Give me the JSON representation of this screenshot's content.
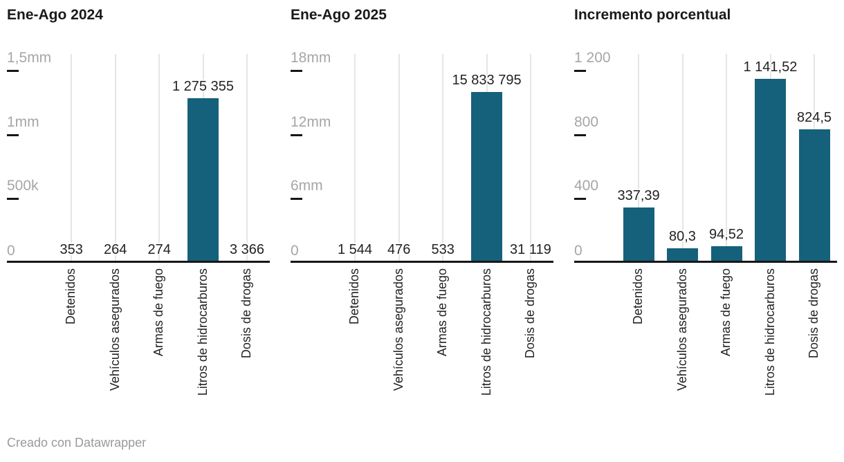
{
  "page": {
    "footer": "Creado con Datawrapper",
    "background": "#ffffff"
  },
  "colors": {
    "bar": "#15617b",
    "grid": "#e5e5e5",
    "axis": "#161616",
    "tick_label": "#a6a6a6",
    "tick_dash": "#161616",
    "title": "#1a1a1a",
    "value_label": "#222222",
    "category_label": "#222222",
    "footer": "#9a9a9a"
  },
  "chart_data": [
    {
      "type": "bar",
      "title": "Ene-Ago 2024",
      "categories": [
        "Detenidos",
        "Vehículos asegurados",
        "Armas de fuego",
        "Litros de hidrocarburos",
        "Dosis de drogas"
      ],
      "values": [
        353,
        264,
        274,
        1275355,
        3366
      ],
      "value_labels": [
        "353",
        "264",
        "274",
        "1 275 355",
        "3 366"
      ],
      "ylim": [
        0,
        1500000
      ],
      "yticks": [
        {
          "value": 1500000,
          "label": "1,5mm"
        },
        {
          "value": 1000000,
          "label": "1mm"
        },
        {
          "value": 500000,
          "label": "500k"
        },
        {
          "value": 0,
          "label": "0"
        }
      ],
      "grid": "vertical",
      "legend": "none"
    },
    {
      "type": "bar",
      "title": "Ene-Ago 2025",
      "categories": [
        "Detenidos",
        "Vehículos asegurados",
        "Armas de fuego",
        "Litros de hidrocarburos",
        "Dosis de drogas"
      ],
      "values": [
        1544,
        476,
        533,
        15833795,
        31119
      ],
      "value_labels": [
        "1 544",
        "476",
        "533",
        "15 833 795",
        "31 119"
      ],
      "ylim": [
        0,
        18000000
      ],
      "yticks": [
        {
          "value": 18000000,
          "label": "18mm"
        },
        {
          "value": 12000000,
          "label": "12mm"
        },
        {
          "value": 6000000,
          "label": "6mm"
        },
        {
          "value": 0,
          "label": "0"
        }
      ],
      "grid": "vertical",
      "legend": "none"
    },
    {
      "type": "bar",
      "title": "Incremento porcentual",
      "categories": [
        "Detenidos",
        "Vehículos asegurados",
        "Armas de fuego",
        "Litros de hidrocarburos",
        "Dosis de drogas"
      ],
      "values": [
        337.39,
        80.3,
        94.52,
        1141.52,
        824.5
      ],
      "value_labels": [
        "337,39",
        "80,3",
        "94,52",
        "1 141,52",
        "824,5"
      ],
      "ylim": [
        0,
        1200
      ],
      "yticks": [
        {
          "value": 1200,
          "label": "1 200"
        },
        {
          "value": 800,
          "label": "800"
        },
        {
          "value": 400,
          "label": "400"
        },
        {
          "value": 0,
          "label": "0"
        }
      ],
      "grid": "vertical",
      "legend": "none"
    }
  ]
}
